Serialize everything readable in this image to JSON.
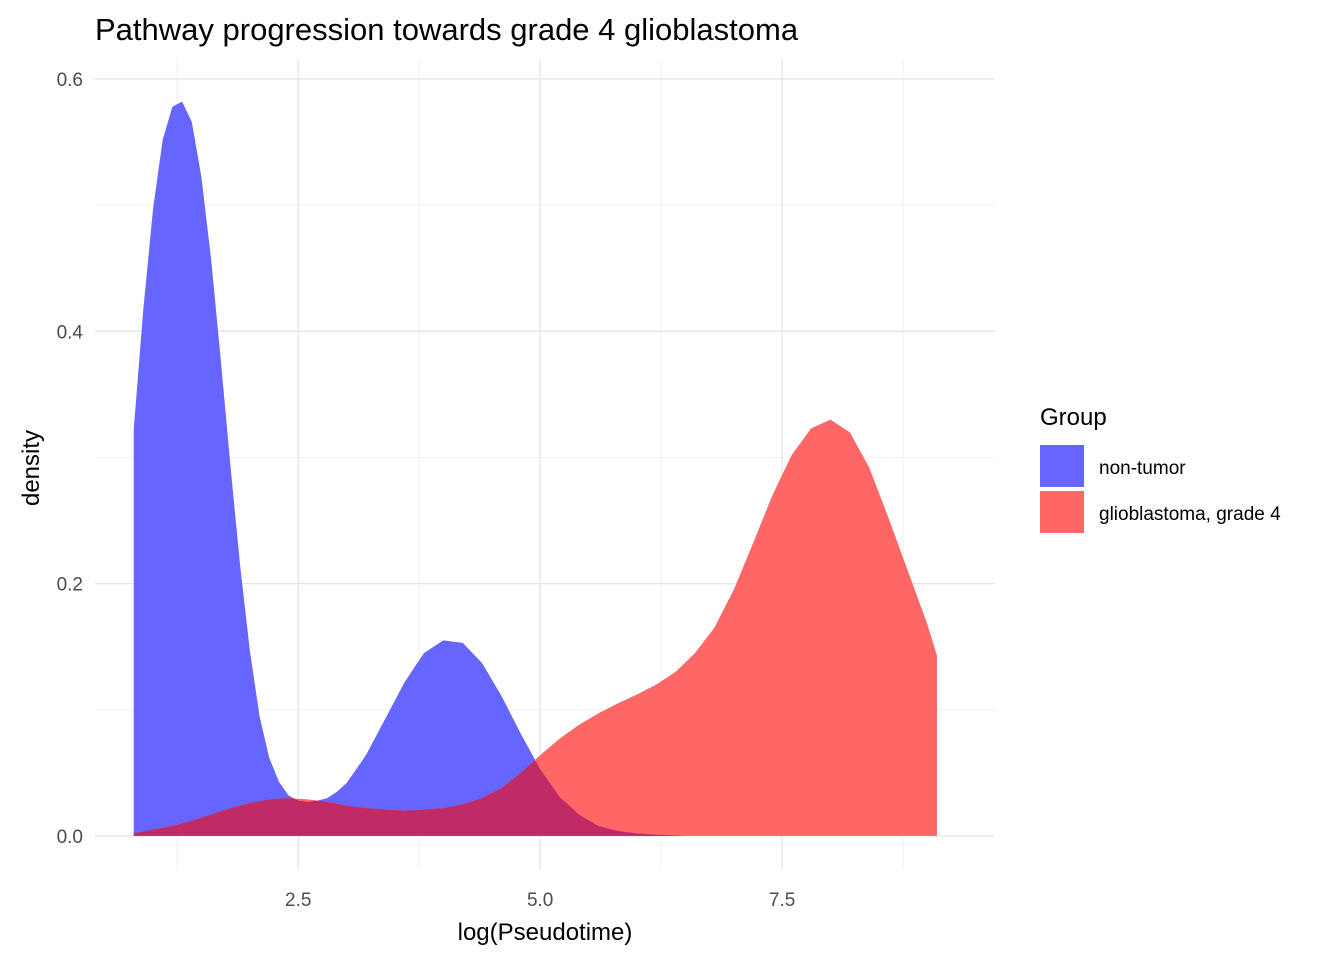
{
  "chart_data": {
    "type": "area",
    "title": "Pathway progression towards grade 4 glioblastoma",
    "xlabel": "log(Pseudotime)",
    "ylabel": "density",
    "xlim": [
      0.4,
      9.7
    ],
    "ylim": [
      -0.027,
      0.615
    ],
    "x_ticks": [
      2.5,
      5.0,
      7.5
    ],
    "x_tick_labels": [
      "2.5",
      "5.0",
      "7.5"
    ],
    "y_ticks": [
      0.0,
      0.2,
      0.4,
      0.6
    ],
    "y_tick_labels": [
      "0.0",
      "0.2",
      "0.4",
      "0.6"
    ],
    "grid": true,
    "legend": {
      "title": "Group",
      "position": "right"
    },
    "series": [
      {
        "name": "non-tumor",
        "color": "#6666ff",
        "x": [
          0.8,
          0.9,
          1.0,
          1.1,
          1.2,
          1.3,
          1.4,
          1.5,
          1.6,
          1.7,
          1.8,
          1.9,
          2.0,
          2.1,
          2.2,
          2.3,
          2.4,
          2.5,
          2.6,
          2.7,
          2.8,
          2.9,
          3.0,
          3.2,
          3.4,
          3.6,
          3.8,
          4.0,
          4.2,
          4.4,
          4.6,
          4.8,
          5.0,
          5.2,
          5.4,
          5.6,
          5.8,
          6.0,
          6.2,
          6.5,
          7.0,
          8.0,
          9.1
        ],
        "values": [
          0.322,
          0.418,
          0.497,
          0.552,
          0.578,
          0.582,
          0.566,
          0.522,
          0.457,
          0.377,
          0.293,
          0.214,
          0.147,
          0.095,
          0.062,
          0.043,
          0.032,
          0.028,
          0.027,
          0.028,
          0.03,
          0.035,
          0.042,
          0.064,
          0.093,
          0.122,
          0.145,
          0.155,
          0.153,
          0.137,
          0.111,
          0.081,
          0.053,
          0.031,
          0.017,
          0.008,
          0.004,
          0.002,
          0.001,
          0.0,
          0.0,
          0.0,
          0.0
        ]
      },
      {
        "name": "glioblastoma, grade 4",
        "color": "#ff6666",
        "x": [
          0.8,
          1.0,
          1.2,
          1.4,
          1.6,
          1.8,
          2.0,
          2.2,
          2.4,
          2.6,
          2.8,
          3.0,
          3.2,
          3.4,
          3.6,
          3.8,
          4.0,
          4.2,
          4.4,
          4.6,
          4.8,
          5.0,
          5.2,
          5.4,
          5.6,
          5.8,
          6.0,
          6.2,
          6.4,
          6.6,
          6.8,
          7.0,
          7.2,
          7.4,
          7.6,
          7.8,
          8.0,
          8.2,
          8.4,
          8.6,
          8.8,
          9.0,
          9.1
        ],
        "values": [
          0.002,
          0.005,
          0.008,
          0.012,
          0.017,
          0.022,
          0.026,
          0.029,
          0.03,
          0.029,
          0.027,
          0.024,
          0.022,
          0.021,
          0.02,
          0.021,
          0.022,
          0.025,
          0.03,
          0.038,
          0.05,
          0.064,
          0.077,
          0.088,
          0.097,
          0.105,
          0.112,
          0.12,
          0.13,
          0.145,
          0.165,
          0.195,
          0.232,
          0.27,
          0.302,
          0.323,
          0.33,
          0.32,
          0.292,
          0.252,
          0.21,
          0.168,
          0.143
        ]
      }
    ]
  }
}
